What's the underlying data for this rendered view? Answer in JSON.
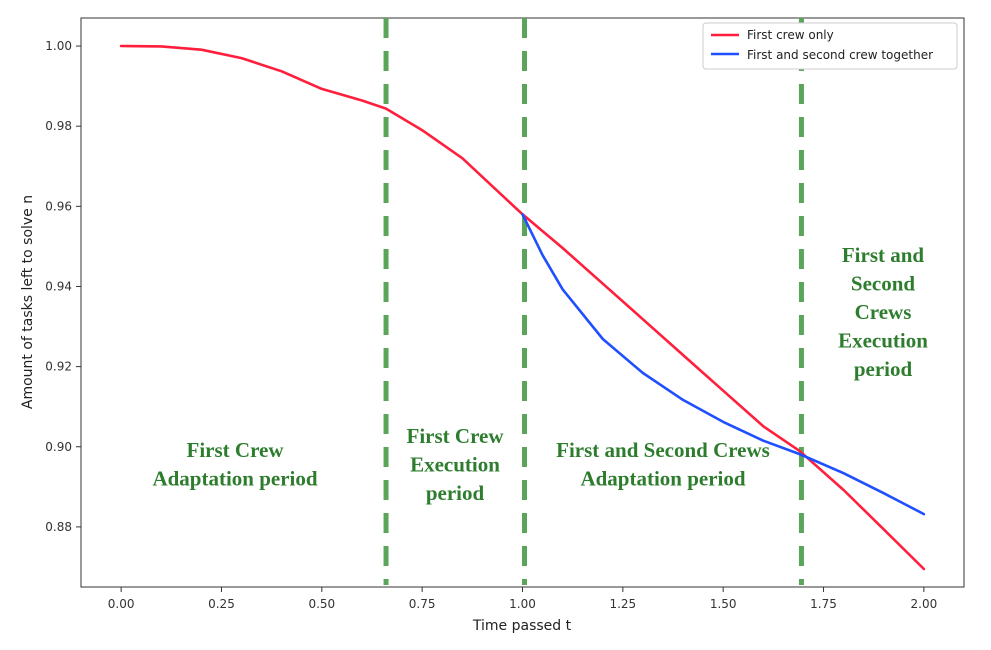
{
  "chart_data": {
    "type": "line",
    "title": "",
    "xlabel": "Time passed t",
    "ylabel": "Amount of tasks left to solve n",
    "xlim": [
      -0.1,
      2.1
    ],
    "ylim": [
      0.865,
      1.007
    ],
    "x_ticks": [
      0.0,
      0.25,
      0.5,
      0.75,
      1.0,
      1.25,
      1.5,
      1.75,
      2.0
    ],
    "x_tick_labels": [
      "0.00",
      "0.25",
      "0.50",
      "0.75",
      "1.00",
      "1.25",
      "1.50",
      "1.75",
      "2.00"
    ],
    "y_ticks": [
      0.88,
      0.9,
      0.92,
      0.94,
      0.96,
      0.98,
      1.0
    ],
    "y_tick_labels": [
      "0.88",
      "0.90",
      "0.92",
      "0.94",
      "0.96",
      "0.98",
      "1.00"
    ],
    "grid": false,
    "legend_position": "top-right",
    "series": [
      {
        "name": "First crew only",
        "color": "#ff1f3d",
        "x": [
          0.0,
          0.1,
          0.2,
          0.3,
          0.4,
          0.5,
          0.6,
          0.66,
          0.75,
          0.85,
          1.0,
          1.1,
          1.2,
          1.3,
          1.4,
          1.5,
          1.6,
          1.69,
          1.8,
          1.9,
          2.0
        ],
        "y": [
          1.0,
          0.9999,
          0.9991,
          0.997,
          0.9937,
          0.9893,
          0.9864,
          0.9844,
          0.979,
          0.972,
          0.958,
          0.9496,
          0.9407,
          0.9318,
          0.9229,
          0.914,
          0.9051,
          0.899,
          0.8892,
          0.8794,
          0.8695
        ]
      },
      {
        "name": "First and second crew together",
        "color": "#1f4fff",
        "x": [
          1.0,
          1.05,
          1.1,
          1.2,
          1.3,
          1.4,
          1.5,
          1.6,
          1.69,
          1.8,
          1.9,
          2.0
        ],
        "y": [
          0.958,
          0.9478,
          0.9393,
          0.9269,
          0.9184,
          0.9117,
          0.9062,
          0.9015,
          0.8982,
          0.8934,
          0.8884,
          0.8832
        ]
      }
    ],
    "vlines": [
      {
        "x": 0.66,
        "color": "#5aa55a",
        "style": "dashed"
      },
      {
        "x": 1.005,
        "color": "#5aa55a",
        "style": "dashed"
      },
      {
        "x": 1.695,
        "color": "#5aa55a",
        "style": "dashed"
      }
    ],
    "annotations": [
      {
        "lines": [
          "First Crew",
          "Adaptation period"
        ],
        "color": "#2e7d2e"
      },
      {
        "lines": [
          "First Crew",
          "Execution",
          "period"
        ],
        "color": "#2e7d2e"
      },
      {
        "lines": [
          "First and Second Crews",
          "Adaptation period"
        ],
        "color": "#2e7d2e"
      },
      {
        "lines": [
          "First and",
          "Second",
          "Crews",
          "Execution",
          "period"
        ],
        "color": "#2e7d2e"
      }
    ]
  }
}
